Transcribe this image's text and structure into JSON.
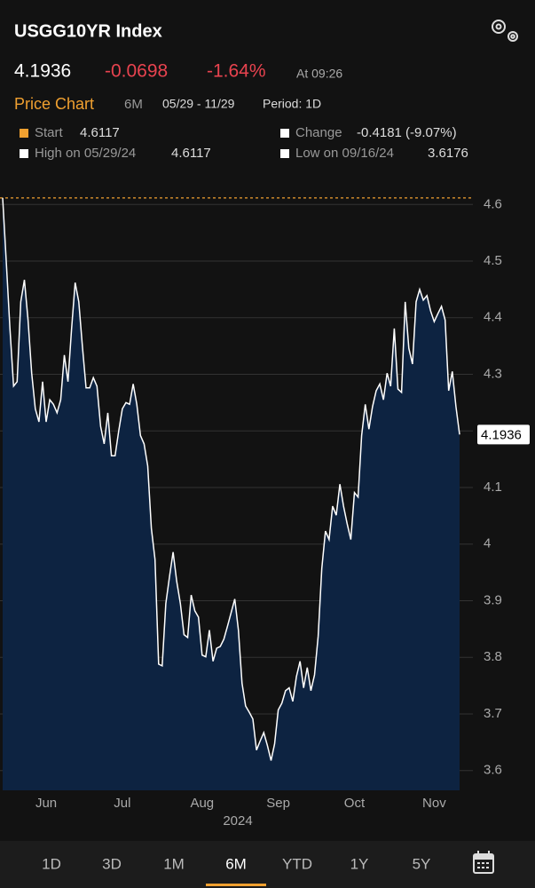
{
  "header": {
    "title": "USGG10YR Index"
  },
  "quote": {
    "price": 4.1936,
    "change": -0.0698,
    "change_pct": "-1.64%",
    "time": "At 09:26"
  },
  "chart_header": {
    "title": "Price Chart",
    "range": "6M",
    "dates": "05/29 - 11/29",
    "period": "Period: 1D"
  },
  "stats": [
    {
      "label": "Start",
      "value": 4.6117,
      "color": "#f0a030"
    },
    {
      "label": "Change",
      "value": "-0.4181 (-9.07%)",
      "color": "#ffffff"
    },
    {
      "label": "High on 05/29/24",
      "value": 4.6117,
      "color": "#ffffff"
    },
    {
      "label": "Low on 09/16/24",
      "value": 3.6176,
      "color": "#ffffff"
    }
  ],
  "chart_data": {
    "type": "area",
    "color": "#ffffff",
    "fill": "#0d2341",
    "grid": true,
    "values": [
      4.6117,
      4.498,
      4.381,
      4.279,
      4.287,
      4.428,
      4.467,
      4.396,
      4.302,
      4.239,
      4.216,
      4.287,
      4.216,
      4.255,
      4.247,
      4.232,
      4.255,
      4.334,
      4.287,
      4.381,
      4.462,
      4.428,
      4.349,
      4.276,
      4.276,
      4.294,
      4.279,
      4.208,
      4.177,
      4.232,
      4.156,
      4.156,
      4.2,
      4.239,
      4.25,
      4.247,
      4.283,
      4.247,
      4.192,
      4.177,
      4.138,
      4.028,
      3.973,
      3.788,
      3.785,
      3.895,
      3.942,
      3.986,
      3.934,
      3.895,
      3.84,
      3.835,
      3.91,
      3.882,
      3.871,
      3.804,
      3.801,
      3.848,
      3.793,
      3.816,
      3.819,
      3.832,
      3.855,
      3.879,
      3.903,
      3.848,
      3.754,
      3.714,
      3.703,
      3.691,
      3.636,
      3.652,
      3.667,
      3.644,
      3.6176,
      3.647,
      3.707,
      3.719,
      3.741,
      3.746,
      3.722,
      3.766,
      3.793,
      3.746,
      3.782,
      3.741,
      3.769,
      3.837,
      3.957,
      4.023,
      4.008,
      4.067,
      4.051,
      4.106,
      4.067,
      4.036,
      4.008,
      4.091,
      4.083,
      4.192,
      4.247,
      4.203,
      4.243,
      4.271,
      4.283,
      4.255,
      4.302,
      4.279,
      4.381,
      4.274,
      4.268,
      4.428,
      4.346,
      4.318,
      4.428,
      4.45,
      4.431,
      4.439,
      4.412,
      4.393,
      4.407,
      4.42,
      4.396,
      4.271,
      4.305,
      4.243,
      4.1936
    ],
    "xlim": [
      0,
      126
    ],
    "xticks": [
      {
        "value": 12,
        "label": "Jun"
      },
      {
        "value": 33,
        "label": "Jul"
      },
      {
        "value": 55,
        "label": "Aug"
      },
      {
        "value": 76,
        "label": "Sep"
      },
      {
        "value": 97,
        "label": "Oct"
      },
      {
        "value": 119,
        "label": "Nov"
      }
    ],
    "xlabel": "2024",
    "ylim": [
      3.565,
      4.624
    ],
    "yticks": [
      3.6,
      3.7,
      3.8,
      3.9,
      4.0,
      4.1,
      4.2,
      4.3,
      4.4,
      4.5,
      4.6
    ]
  },
  "tabs": {
    "items": [
      "1D",
      "3D",
      "1M",
      "6M",
      "YTD",
      "1Y",
      "5Y"
    ],
    "selected": "6M"
  }
}
